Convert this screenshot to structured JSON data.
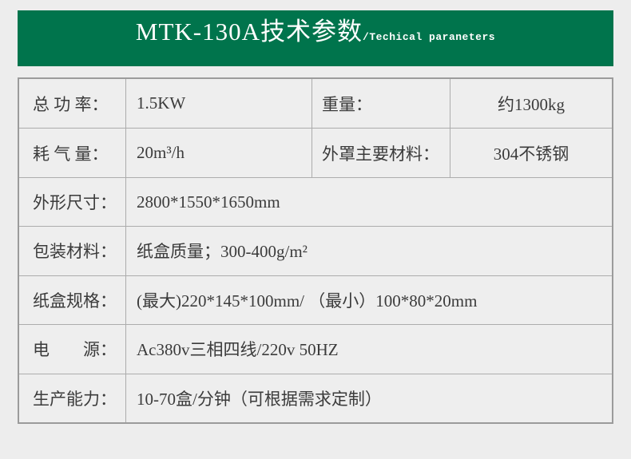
{
  "banner": {
    "title_cn": "MTK-130A技术参数",
    "title_en": "/Techical paraneters",
    "bg_color": "#00744c",
    "text_color": "#ffffff"
  },
  "table": {
    "border_color": "#9b9b9b",
    "grid_color": "#acacac",
    "cell_bg": "#eeeeee",
    "text_color": "#3b3b3b",
    "rows": [
      {
        "label": "总 功 率：",
        "value": "1.5KW",
        "label2": "重量：",
        "value2": "约1300kg"
      },
      {
        "label": "耗 气 量：",
        "value": "20m³/h",
        "label2": "外罩主要材料：",
        "value2": "304不锈钢"
      },
      {
        "label": "外形尺寸：",
        "value": "2800*1550*1650mm"
      },
      {
        "label": "包装材料：",
        "value": "纸盒质量；300-400g/m²"
      },
      {
        "label": "纸盒规格：",
        "value": "(最大)220*145*100mm/ （最小）100*80*20mm"
      },
      {
        "label": "电　　源：",
        "value": "Ac380v三相四线/220v 50HZ"
      },
      {
        "label": "生产能力：",
        "value": "10-70盒/分钟（可根据需求定制）"
      }
    ]
  }
}
